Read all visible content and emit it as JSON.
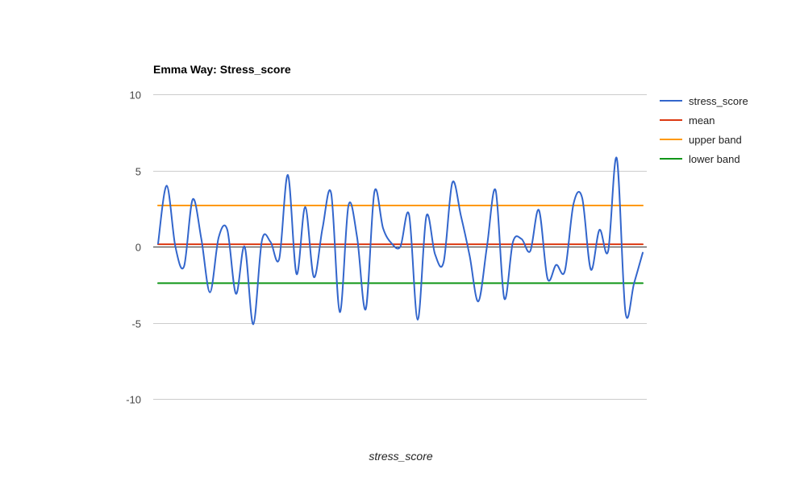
{
  "chart_data": {
    "type": "line",
    "title": "Emma Way: Stress_score",
    "xlabel": "stress_score",
    "ylabel": "",
    "ylim": [
      -10,
      10
    ],
    "yticks": [
      10,
      5,
      0,
      -5,
      -10
    ],
    "grid": true,
    "legend_position": "right",
    "series": [
      {
        "name": "stress_score",
        "color": "#3366cc",
        "values": [
          0.2,
          4.0,
          0.0,
          -1.3,
          3.1,
          0.5,
          -3.0,
          0.6,
          1.1,
          -3.1,
          0.0,
          -5.1,
          0.4,
          0.3,
          -0.8,
          4.7,
          -1.8,
          2.6,
          -2.0,
          1.2,
          3.5,
          -4.3,
          2.7,
          0.6,
          -4.1,
          3.6,
          1.2,
          0.2,
          0.0,
          2.1,
          -4.8,
          2.0,
          -0.5,
          -1.0,
          4.2,
          2.0,
          -0.6,
          -3.6,
          0.0,
          3.7,
          -3.4,
          0.3,
          0.5,
          -0.3,
          2.4,
          -2.1,
          -1.2,
          -1.6,
          2.8,
          3.2,
          -1.5,
          1.1,
          -0.3,
          5.8,
          -4.3,
          -2.4,
          -0.4
        ]
      },
      {
        "name": "mean",
        "color": "#dc3912",
        "values": [
          0.15,
          0.15
        ]
      },
      {
        "name": "upper band",
        "color": "#ff9900",
        "values": [
          2.7,
          2.7
        ]
      },
      {
        "name": "lower band",
        "color": "#109618",
        "values": [
          -2.4,
          -2.4
        ]
      }
    ]
  }
}
